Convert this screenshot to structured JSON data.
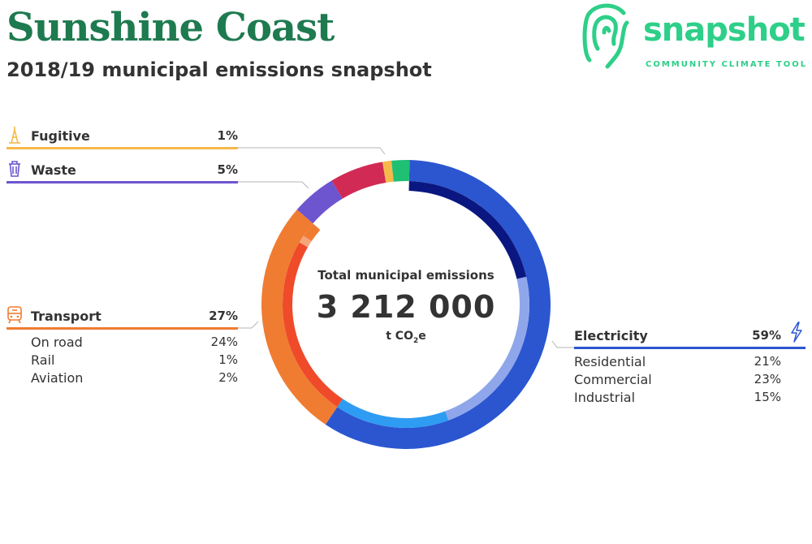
{
  "header": {
    "title": "Sunshine Coast",
    "subtitle": "2018/19 municipal emissions snapshot"
  },
  "logo": {
    "word": "snapshot",
    "tagline": "COMMUNITY CLIMATE TOOL",
    "icon": "fingerprint-icon",
    "color": "#2ecf88"
  },
  "center": {
    "label": "Total municipal emissions",
    "value": "3 212 000",
    "unit_prefix": "t CO",
    "unit_sub": "2",
    "unit_suffix": "e"
  },
  "chart_data": {
    "type": "pie",
    "variant": "two-ring donut (outer: sectors, inner: sub-sectors)",
    "total": 3212000,
    "unit": "t CO2e",
    "sectors": [
      {
        "name": "Electricity",
        "pct": 59,
        "pct_label": "59%",
        "color": "#2b56d0",
        "icon": "lightning-icon",
        "sub": [
          {
            "name": "Residential",
            "pct": 21,
            "pct_label": "21%",
            "color": "#0b1780"
          },
          {
            "name": "Commercial",
            "pct": 23,
            "pct_label": "23%",
            "color": "#8fa6ea"
          },
          {
            "name": "Industrial",
            "pct": 15,
            "pct_label": "15%",
            "color": "#2e9cf2"
          }
        ]
      },
      {
        "name": "Transport",
        "pct": 27,
        "pct_label": "27%",
        "color": "#f07c32",
        "icon": "train-icon",
        "sub": [
          {
            "name": "On road",
            "pct": 24,
            "pct_label": "24%",
            "color": "#ef4a2a"
          },
          {
            "name": "Rail",
            "pct": 1,
            "pct_label": "1%",
            "color": "#f6a47a"
          },
          {
            "name": "Aviation",
            "pct": 2,
            "pct_label": "2%",
            "color": "#f07c32"
          }
        ]
      },
      {
        "name": "Waste",
        "pct": 5,
        "pct_label": "5%",
        "color": "#6d55cf",
        "icon": "trash-can-icon",
        "sub": []
      },
      {
        "name": "",
        "pct": 6,
        "pct_label": "",
        "color": "#d12a55",
        "icon": "",
        "sub": []
      },
      {
        "name": "Fugitive",
        "pct": 1,
        "pct_label": "1%",
        "color": "#f7b84a",
        "icon": "oil-rig-icon",
        "sub": []
      },
      {
        "name": "",
        "pct": 2,
        "pct_label": "",
        "color": "#1fbf74",
        "icon": "",
        "sub": []
      }
    ]
  }
}
